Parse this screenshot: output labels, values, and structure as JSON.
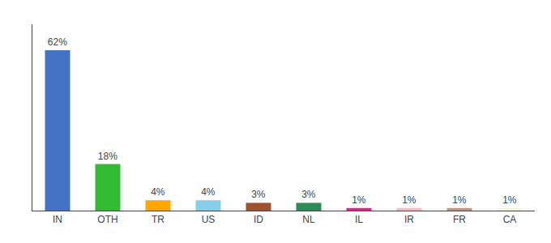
{
  "chart_data": {
    "type": "bar",
    "categories": [
      "IN",
      "OTH",
      "TR",
      "US",
      "ID",
      "NL",
      "IL",
      "IR",
      "FR",
      "CA"
    ],
    "values": [
      62,
      18,
      4,
      4,
      3,
      3,
      1,
      1,
      1,
      1
    ],
    "value_labels": [
      "62%",
      "18%",
      "4%",
      "4%",
      "3%",
      "3%",
      "1%",
      "1%",
      "1%",
      "1%"
    ],
    "colors": [
      "#4472C4",
      "#33BB33",
      "#FFA500",
      "#87CEEB",
      "#A0522D",
      "#2E8B57",
      "#FF1493",
      "#FFB6C1",
      "#C8927A",
      "#F5F5DC"
    ],
    "ylim": [
      0,
      72
    ],
    "data_labels": true,
    "tick_labels": "x",
    "grid": false
  }
}
